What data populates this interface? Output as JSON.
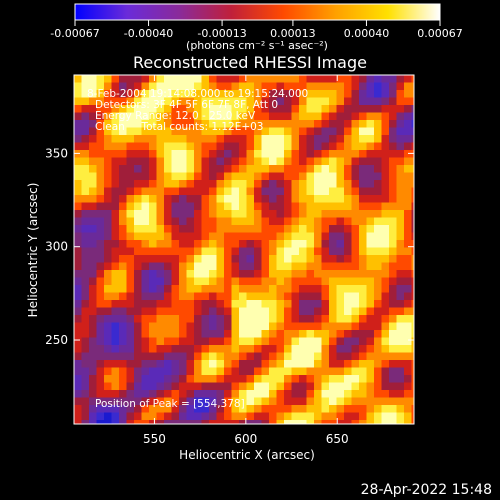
{
  "chart_data": {
    "type": "heatmap",
    "title": "Reconstructed RHESSI Image",
    "xlabel": "Heliocentric X (arcsec)",
    "ylabel": "Heliocentric Y (arcsec)",
    "xlim": [
      506,
      692
    ],
    "ylim": [
      205,
      392
    ],
    "x_ticks": [
      550,
      600,
      650
    ],
    "y_ticks": [
      250,
      300,
      350
    ],
    "colorbar": {
      "range": [
        -0.00067,
        0.00067
      ],
      "tick_values": [
        -0.00067,
        -0.0004,
        -0.00013,
        0.00013,
        0.0004,
        0.00067
      ],
      "tick_labels": [
        "-0.00067",
        "-0.00040",
        "-0.00013",
        "0.00013",
        "0.00040",
        "0.00067"
      ],
      "unit_label": "(photons cm⁻² s⁻¹ asec⁻²)",
      "colors": [
        "#0000ff",
        "#6a2bd9",
        "#8a2a9a",
        "#c0203a",
        "#ff4a00",
        "#ffa000",
        "#ffe000",
        "#ffffff"
      ]
    },
    "annotations": [
      "8-Feb-2004 19:14:08.000 to 19:15:24.000",
      "Detectors: 3F 4F 5F 6F 7F 8F, Att 0",
      "Energy Range: 12.0 - 25.0 keV",
      "Clean     Total counts: 1.12E+03"
    ],
    "peak_label": "Position of Peak = [554,378]",
    "peak_position": [
      554,
      378
    ]
  },
  "timestamp": "28-Apr-2022 15:48"
}
